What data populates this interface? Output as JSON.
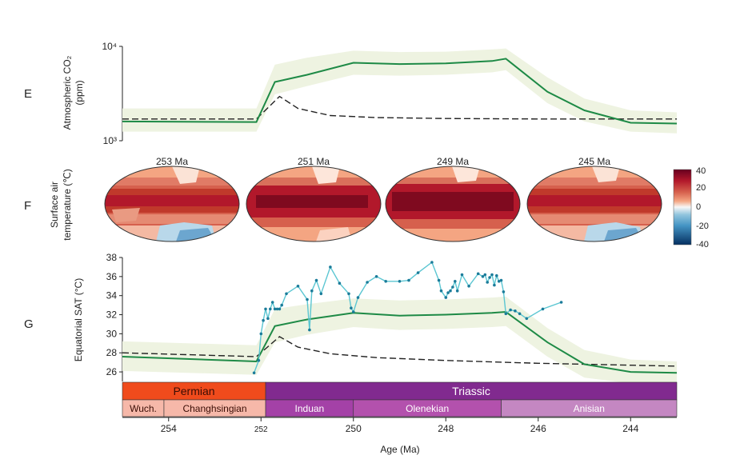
{
  "panels": {
    "e_letter": "E",
    "f_letter": "F",
    "g_letter": "G"
  },
  "axis": {
    "x_label": "Age (Ma)",
    "x_ticks": [
      "254",
      "252",
      "250",
      "248",
      "246",
      "244"
    ]
  },
  "colors": {
    "model_line": "#1e8a46",
    "uncertainty_band": "#eef3e1",
    "baseline_dashed": "#222222",
    "proxy_line": "#5bc6d2",
    "proxy_point": "#1b7c9a",
    "permian_bg": "#f04b1c",
    "permian_stage_bg": "#f6b8a9",
    "triassic_bg": "#812a8f",
    "induan_bg": "#a441a7",
    "olenekian_bg": "#b351ad",
    "anisian_bg": "#c487c2"
  },
  "timescale": {
    "periods": [
      {
        "name": "Permian",
        "from": 255.0,
        "to": 251.9
      },
      {
        "name": "Triassic",
        "from": 251.9,
        "to": 243.0
      }
    ],
    "stages": [
      {
        "name": "Wuch.",
        "from": 255.0,
        "to": 254.1
      },
      {
        "name": "Changhsingian",
        "from": 254.1,
        "to": 251.9
      },
      {
        "name": "Induan",
        "from": 251.9,
        "to": 250.0
      },
      {
        "name": "Olenekian",
        "from": 250.0,
        "to": 246.8
      },
      {
        "name": "Anisian",
        "from": 246.8,
        "to": 243.0
      }
    ]
  },
  "maps": {
    "titles": [
      "253 Ma",
      "251 Ma",
      "249 Ma",
      "245 Ma"
    ],
    "colorbar_ticks": [
      "40",
      "20",
      "0",
      "-20",
      "-40"
    ]
  },
  "chart_data": [
    {
      "type": "line",
      "panel": "E",
      "title": "",
      "xlabel": "Age (Ma)",
      "ylabel_line1": "Atmospheric CO₂",
      "ylabel_line2": "(ppm)",
      "y_scale": "log",
      "y_tick_labels": [
        "10⁴",
        "10³"
      ],
      "xlim": [
        255.0,
        243.0
      ],
      "ylim": [
        1000,
        10000
      ],
      "series": [
        {
          "name": "model CO2",
          "x": [
            255.0,
            252.1,
            251.7,
            251.0,
            250.0,
            249.0,
            248.0,
            247.0,
            246.7,
            245.8,
            245.0,
            244.0,
            243.0
          ],
          "values": [
            1600,
            1580,
            4200,
            5000,
            6700,
            6500,
            6600,
            7000,
            7400,
            3300,
            2100,
            1550,
            1520
          ]
        },
        {
          "name": "band upper",
          "x": [
            255.0,
            252.1,
            251.7,
            251.0,
            250.0,
            249.0,
            248.0,
            247.0,
            246.7,
            245.8,
            245.0,
            244.0,
            243.0
          ],
          "values": [
            2200,
            2200,
            6400,
            7600,
            9000,
            8700,
            8800,
            9300,
            9500,
            4700,
            2800,
            2100,
            2000
          ]
        },
        {
          "name": "band lower",
          "x": [
            255.0,
            252.1,
            251.7,
            251.0,
            250.0,
            249.0,
            248.0,
            247.0,
            246.7,
            245.8,
            245.0,
            244.0,
            243.0
          ],
          "values": [
            1250,
            1250,
            3100,
            3800,
            5000,
            4900,
            5000,
            5300,
            5600,
            2500,
            1600,
            1250,
            1200
          ]
        },
        {
          "name": "baseline",
          "x": [
            255.0,
            252.1,
            251.6,
            251.2,
            250.5,
            249.5,
            248.0,
            246.0,
            243.0
          ],
          "values": [
            1700,
            1700,
            2950,
            2200,
            1850,
            1760,
            1720,
            1700,
            1700
          ]
        }
      ]
    },
    {
      "type": "line",
      "panel": "G",
      "title": "",
      "xlabel": "Age (Ma)",
      "ylabel": "Equatorial SAT (°C)",
      "xlim": [
        255.0,
        243.0
      ],
      "ylim": [
        25,
        38
      ],
      "y_ticks": [
        26,
        28,
        30,
        32,
        34,
        36,
        38
      ],
      "series": [
        {
          "name": "model SAT",
          "x": [
            255.0,
            252.1,
            251.7,
            251.0,
            250.0,
            249.0,
            248.0,
            247.0,
            246.7,
            245.8,
            245.0,
            244.0,
            243.0
          ],
          "values": [
            27.6,
            27.1,
            30.8,
            31.5,
            32.2,
            31.9,
            32.0,
            32.2,
            32.3,
            29.1,
            26.8,
            26.0,
            25.9
          ]
        },
        {
          "name": "band upper",
          "x": [
            255.0,
            252.1,
            251.7,
            251.0,
            250.0,
            249.0,
            248.0,
            247.0,
            246.7,
            245.8,
            245.0,
            244.0,
            243.0
          ],
          "values": [
            29.2,
            28.8,
            32.6,
            33.1,
            33.7,
            33.5,
            33.6,
            33.8,
            33.9,
            30.6,
            28.3,
            27.3,
            27.1
          ]
        },
        {
          "name": "band lower",
          "x": [
            255.0,
            252.1,
            251.7,
            251.0,
            250.0,
            249.0,
            248.0,
            247.0,
            246.7,
            245.8,
            245.0,
            244.0,
            243.0
          ],
          "values": [
            26.1,
            25.7,
            29.1,
            29.9,
            30.7,
            30.4,
            30.5,
            30.7,
            30.8,
            27.6,
            25.4,
            24.8,
            24.7
          ]
        },
        {
          "name": "baseline",
          "x": [
            255.0,
            252.1,
            251.6,
            251.2,
            250.5,
            249.5,
            248.0,
            246.0,
            244.0,
            243.0
          ],
          "values": [
            28.0,
            27.6,
            29.7,
            28.6,
            27.9,
            27.5,
            27.2,
            26.9,
            26.7,
            26.6
          ]
        },
        {
          "name": "proxy",
          "x": [
            252.15,
            252.05,
            252.0,
            251.95,
            251.9,
            251.85,
            251.8,
            251.75,
            251.7,
            251.65,
            251.6,
            251.55,
            251.45,
            251.2,
            251.0,
            250.95,
            250.9,
            250.8,
            250.7,
            250.5,
            250.3,
            250.1,
            250.05,
            250.0,
            249.9,
            249.7,
            249.5,
            249.3,
            249.0,
            248.8,
            248.6,
            248.3,
            248.15,
            248.1,
            248.0,
            247.95,
            247.9,
            247.85,
            247.8,
            247.75,
            247.65,
            247.5,
            247.3,
            247.2,
            247.15,
            247.1,
            247.05,
            247.0,
            246.95,
            246.9,
            246.85,
            246.8,
            246.75,
            246.7,
            246.6,
            246.5,
            246.4,
            246.25,
            245.9,
            245.5
          ],
          "values": [
            25.9,
            27.2,
            30.0,
            31.4,
            32.6,
            31.6,
            32.6,
            33.3,
            32.6,
            32.6,
            32.6,
            33.0,
            34.2,
            35.0,
            33.6,
            30.4,
            34.5,
            35.6,
            34.2,
            37.0,
            35.3,
            34.2,
            32.7,
            32.3,
            33.8,
            35.4,
            36.0,
            35.5,
            35.5,
            35.6,
            36.4,
            37.5,
            35.6,
            34.5,
            33.8,
            34.3,
            34.5,
            34.9,
            35.5,
            34.5,
            36.2,
            35.0,
            36.3,
            36.0,
            36.2,
            35.4,
            35.9,
            36.2,
            35.1,
            36.1,
            35.5,
            35.6,
            34.4,
            32.1,
            32.5,
            32.4,
            32.1,
            31.6,
            32.6,
            33.3
          ]
        }
      ]
    }
  ]
}
